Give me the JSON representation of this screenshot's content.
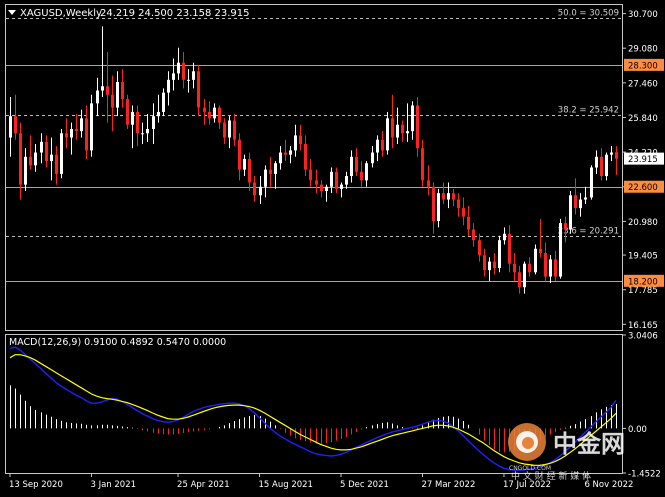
{
  "symbol_header": {
    "symbol": "XAGUSD,Weekly",
    "ohlc": "24.219 24.500 23.158 23.915"
  },
  "price_axis": {
    "ticks": [
      "30.700",
      "29.080",
      "27.460",
      "25.840",
      "24.220",
      "22.600",
      "20.980",
      "19.405",
      "17.785",
      "16.165"
    ],
    "current_price": "23.915",
    "tagged_levels": [
      {
        "label": "28.300",
        "value": 28.3
      },
      {
        "label": "22.600",
        "value": 22.6
      },
      {
        "label": "18.200",
        "value": 18.2
      }
    ]
  },
  "fibonacci_levels": [
    {
      "label": "50.0 = 30.509",
      "value": 30.509
    },
    {
      "label": "38.2 = 25.942",
      "value": 25.942
    },
    {
      "label": "23.6 = 20.291",
      "value": 20.291
    }
  ],
  "macd_panel": {
    "label": "MACD(12,26,9) 0.9100 0.4892 0.5470 0.0000",
    "axis_ticks": [
      "3.0406",
      "0.00",
      "-1.4522"
    ]
  },
  "time_axis": {
    "labels": [
      "13 Sep 2020",
      "3 Jan 2021",
      "25 Apr 2021",
      "15 Aug 2021",
      "5 Dec 2021",
      "27 Mar 2022",
      "17 Jul 2022",
      "6 Nov 2022"
    ]
  },
  "watermark": {
    "brand": "中金网",
    "domain": "CNGOLD.COM",
    "slogan": "中 文 财 经 新 媒 体"
  },
  "colors": {
    "background": "#000000",
    "bull_candle": "#ffffff",
    "bear_candle": "#ff2020",
    "level_line": "#ff8c3c",
    "macd_main": "#1f1fff",
    "macd_signal": "#ffff00"
  },
  "chart_data": {
    "type": "candlestick",
    "symbol": "XAGUSD",
    "timeframe": "Weekly",
    "last_bar": {
      "open": 24.219,
      "high": 24.5,
      "low": 23.158,
      "close": 23.915
    },
    "y_range": [
      15.9,
      31.1
    ],
    "candles": [
      [
        24.9,
        26.8,
        24.0,
        25.9
      ],
      [
        25.9,
        26.9,
        24.8,
        25.1
      ],
      [
        25.1,
        25.6,
        22.0,
        22.7
      ],
      [
        22.7,
        24.4,
        22.4,
        24.0
      ],
      [
        24.0,
        25.0,
        23.4,
        23.6
      ],
      [
        23.6,
        24.6,
        23.3,
        24.2
      ],
      [
        24.2,
        25.1,
        23.7,
        24.7
      ],
      [
        24.7,
        25.0,
        23.5,
        23.8
      ],
      [
        23.8,
        24.9,
        22.9,
        24.1
      ],
      [
        24.1,
        24.5,
        22.7,
        23.2
      ],
      [
        23.2,
        25.3,
        23.0,
        25.1
      ],
      [
        25.1,
        25.8,
        24.4,
        24.9
      ],
      [
        24.9,
        25.6,
        24.1,
        25.3
      ],
      [
        25.3,
        26.0,
        24.8,
        25.2
      ],
      [
        25.2,
        26.2,
        24.9,
        25.8
      ],
      [
        25.8,
        26.4,
        23.9,
        24.3
      ],
      [
        24.3,
        26.9,
        24.0,
        26.5
      ],
      [
        26.5,
        27.7,
        25.9,
        27.1
      ],
      [
        27.1,
        30.1,
        26.8,
        27.3
      ],
      [
        27.3,
        28.9,
        25.6,
        26.9
      ],
      [
        26.9,
        27.8,
        25.2,
        26.3
      ],
      [
        26.3,
        28.0,
        25.9,
        27.5
      ],
      [
        27.5,
        28.1,
        26.3,
        26.7
      ],
      [
        26.7,
        26.9,
        25.3,
        25.5
      ],
      [
        25.5,
        26.4,
        24.4,
        26.1
      ],
      [
        26.1,
        26.4,
        24.5,
        25.1
      ],
      [
        25.1,
        25.6,
        24.6,
        25.1
      ],
      [
        25.1,
        26.0,
        24.7,
        25.3
      ],
      [
        25.3,
        26.5,
        24.6,
        25.9
      ],
      [
        25.9,
        26.9,
        25.6,
        26.1
      ],
      [
        26.1,
        27.2,
        25.9,
        27.0
      ],
      [
        27.0,
        28.0,
        26.4,
        27.6
      ],
      [
        27.6,
        28.6,
        27.1,
        27.9
      ],
      [
        27.9,
        29.1,
        27.6,
        28.4
      ],
      [
        28.4,
        28.9,
        27.2,
        27.6
      ],
      [
        27.6,
        28.1,
        27.0,
        27.6
      ],
      [
        27.6,
        28.4,
        27.2,
        28.0
      ],
      [
        28.0,
        28.3,
        25.9,
        26.3
      ],
      [
        26.3,
        26.7,
        25.5,
        26.1
      ],
      [
        26.1,
        26.6,
        25.5,
        25.8
      ],
      [
        25.8,
        26.5,
        25.6,
        26.3
      ],
      [
        26.3,
        26.4,
        25.3,
        25.6
      ],
      [
        25.6,
        25.8,
        24.6,
        24.9
      ],
      [
        24.9,
        25.9,
        24.4,
        25.7
      ],
      [
        25.7,
        26.0,
        24.5,
        24.8
      ],
      [
        24.8,
        25.1,
        22.9,
        23.4
      ],
      [
        23.4,
        24.1,
        23.1,
        23.9
      ],
      [
        23.9,
        24.2,
        22.4,
        22.8
      ],
      [
        22.8,
        23.1,
        21.9,
        22.2
      ],
      [
        22.2,
        23.1,
        21.8,
        22.6
      ],
      [
        22.6,
        23.6,
        22.1,
        23.4
      ],
      [
        23.4,
        24.0,
        22.6,
        23.2
      ],
      [
        23.2,
        23.8,
        22.5,
        23.7
      ],
      [
        23.7,
        24.5,
        23.4,
        24.2
      ],
      [
        24.2,
        24.8,
        23.8,
        24.1
      ],
      [
        24.1,
        24.5,
        23.7,
        24.3
      ],
      [
        24.3,
        25.5,
        24.0,
        25.0
      ],
      [
        25.0,
        25.5,
        24.3,
        24.6
      ],
      [
        24.6,
        25.0,
        23.1,
        23.4
      ],
      [
        23.4,
        23.9,
        22.6,
        22.9
      ],
      [
        22.9,
        23.4,
        22.3,
        22.7
      ],
      [
        22.7,
        22.9,
        22.1,
        22.4
      ],
      [
        22.4,
        22.7,
        21.9,
        22.6
      ],
      [
        22.6,
        23.5,
        22.3,
        23.3
      ],
      [
        23.3,
        23.5,
        22.3,
        22.5
      ],
      [
        22.5,
        22.8,
        22.1,
        22.7
      ],
      [
        22.7,
        23.3,
        22.5,
        23.1
      ],
      [
        23.1,
        24.3,
        22.8,
        24.0
      ],
      [
        24.0,
        24.4,
        23.1,
        23.3
      ],
      [
        23.3,
        23.8,
        22.6,
        22.9
      ],
      [
        22.9,
        23.8,
        22.6,
        23.7
      ],
      [
        23.7,
        24.5,
        23.5,
        24.2
      ],
      [
        24.2,
        25.0,
        23.8,
        24.8
      ],
      [
        24.8,
        25.2,
        24.0,
        24.3
      ],
      [
        24.3,
        26.1,
        24.1,
        25.8
      ],
      [
        25.8,
        26.9,
        24.4,
        24.9
      ],
      [
        24.9,
        26.3,
        24.6,
        25.5
      ],
      [
        25.5,
        25.7,
        24.7,
        25.1
      ],
      [
        25.1,
        26.5,
        24.7,
        25.2
      ],
      [
        25.2,
        26.6,
        24.8,
        26.4
      ],
      [
        26.4,
        26.8,
        24.0,
        24.4
      ],
      [
        24.4,
        24.8,
        22.6,
        22.9
      ],
      [
        22.9,
        23.6,
        22.2,
        22.6
      ],
      [
        22.6,
        22.8,
        20.4,
        21.0
      ],
      [
        21.0,
        22.5,
        20.7,
        22.3
      ],
      [
        22.3,
        22.8,
        21.8,
        22.0
      ],
      [
        22.0,
        22.8,
        21.6,
        22.3
      ],
      [
        22.3,
        22.5,
        21.7,
        22.0
      ],
      [
        22.0,
        22.3,
        21.2,
        21.6
      ],
      [
        21.6,
        22.1,
        20.8,
        21.2
      ],
      [
        21.2,
        21.7,
        20.3,
        20.6
      ],
      [
        20.6,
        20.9,
        19.8,
        20.1
      ],
      [
        20.1,
        20.4,
        19.1,
        19.4
      ],
      [
        19.4,
        19.7,
        18.4,
        18.7
      ],
      [
        18.7,
        19.3,
        18.2,
        19.1
      ],
      [
        19.1,
        19.5,
        18.5,
        18.8
      ],
      [
        18.8,
        20.3,
        18.6,
        20.1
      ],
      [
        20.1,
        20.7,
        19.9,
        20.4
      ],
      [
        20.4,
        20.8,
        18.6,
        19.0
      ],
      [
        19.0,
        19.5,
        18.2,
        18.6
      ],
      [
        18.6,
        18.9,
        17.6,
        17.9
      ],
      [
        17.9,
        19.1,
        17.6,
        19.0
      ],
      [
        19.0,
        19.3,
        18.4,
        18.6
      ],
      [
        18.6,
        19.9,
        18.5,
        19.7
      ],
      [
        19.7,
        21.1,
        19.3,
        19.5
      ],
      [
        19.5,
        20.0,
        18.2,
        18.4
      ],
      [
        18.4,
        19.4,
        18.1,
        19.2
      ],
      [
        19.2,
        19.6,
        18.2,
        18.4
      ],
      [
        18.4,
        21.1,
        18.3,
        20.9
      ],
      [
        20.9,
        21.2,
        20.0,
        20.6
      ],
      [
        20.6,
        22.4,
        20.4,
        22.2
      ],
      [
        22.2,
        23.0,
        21.3,
        21.6
      ],
      [
        21.6,
        22.3,
        21.2,
        22.0
      ],
      [
        22.0,
        22.6,
        21.8,
        22.1
      ],
      [
        22.1,
        23.6,
        22.0,
        23.5
      ],
      [
        23.5,
        24.3,
        23.2,
        24.0
      ],
      [
        24.0,
        24.4,
        22.9,
        23.1
      ],
      [
        23.1,
        24.2,
        22.9,
        24.1
      ],
      [
        24.1,
        24.5,
        23.8,
        24.2
      ],
      [
        24.219,
        24.5,
        23.158,
        23.915
      ]
    ],
    "macd_histogram": [
      1.4,
      1.3,
      1.1,
      0.9,
      0.72,
      0.6,
      0.52,
      0.45,
      0.38,
      0.3,
      0.25,
      0.2,
      0.18,
      0.16,
      0.15,
      0.12,
      0.1,
      0.1,
      0.12,
      0.12,
      0.1,
      0.08,
      0.06,
      0.04,
      0.02,
      -0.02,
      -0.06,
      -0.1,
      -0.14,
      -0.17,
      -0.19,
      -0.2,
      -0.2,
      -0.18,
      -0.15,
      -0.12,
      -0.1,
      -0.08,
      -0.06,
      -0.03,
      0.0,
      0.05,
      0.1,
      0.17,
      0.24,
      0.3,
      0.36,
      0.4,
      0.44,
      0.4,
      0.32,
      0.22,
      0.1,
      -0.02,
      -0.14,
      -0.24,
      -0.32,
      -0.38,
      -0.42,
      -0.46,
      -0.5,
      -0.5,
      -0.48,
      -0.45,
      -0.4,
      -0.34,
      -0.28,
      -0.2,
      -0.12,
      -0.04,
      0.04,
      0.1,
      0.14,
      0.18,
      0.2,
      0.16,
      0.1,
      0.04,
      0.0,
      -0.02,
      0.02,
      0.1,
      0.2,
      0.28,
      0.34,
      0.38,
      0.4,
      0.38,
      0.32,
      0.24,
      0.12,
      0.0,
      -0.2,
      -0.4,
      -0.55,
      -0.68,
      -0.76,
      -0.78,
      -0.76,
      -0.72,
      -0.68,
      -0.62,
      -0.56,
      -0.5,
      -0.4,
      -0.3,
      -0.2,
      -0.12,
      -0.05,
      0.02,
      0.08,
      0.14,
      0.22,
      0.3,
      0.4,
      0.52,
      0.62,
      0.7,
      0.76,
      0.8
    ],
    "macd_line": [
      2.6,
      2.65,
      2.55,
      2.4,
      2.25,
      2.1,
      1.95,
      1.8,
      1.65,
      1.5,
      1.38,
      1.28,
      1.18,
      1.08,
      1.0,
      0.9,
      0.82,
      0.82,
      0.86,
      0.92,
      0.98,
      0.96,
      0.88,
      0.78,
      0.68,
      0.58,
      0.48,
      0.4,
      0.32,
      0.26,
      0.22,
      0.2,
      0.22,
      0.28,
      0.36,
      0.46,
      0.55,
      0.62,
      0.68,
      0.72,
      0.75,
      0.78,
      0.8,
      0.82,
      0.82,
      0.8,
      0.74,
      0.64,
      0.5,
      0.34,
      0.18,
      0.02,
      -0.12,
      -0.24,
      -0.34,
      -0.44,
      -0.52,
      -0.6,
      -0.68,
      -0.76,
      -0.82,
      -0.86,
      -0.88,
      -0.9,
      -0.88,
      -0.84,
      -0.78,
      -0.7,
      -0.62,
      -0.54,
      -0.46,
      -0.38,
      -0.3,
      -0.24,
      -0.18,
      -0.12,
      -0.08,
      -0.04,
      0.0,
      0.04,
      0.08,
      0.14,
      0.2,
      0.24,
      0.26,
      0.24,
      0.18,
      0.06,
      -0.08,
      -0.24,
      -0.4,
      -0.56,
      -0.72,
      -0.86,
      -1.0,
      -1.12,
      -1.22,
      -1.3,
      -1.34,
      -1.36,
      -1.36,
      -1.35,
      -1.33,
      -1.3,
      -1.26,
      -1.2,
      -1.12,
      -1.02,
      -0.9,
      -0.76,
      -0.6,
      -0.44,
      -0.28,
      -0.12,
      0.04,
      0.2,
      0.36,
      0.52,
      0.68,
      0.91
    ],
    "macd_signal": [
      2.3,
      2.4,
      2.4,
      2.36,
      2.3,
      2.22,
      2.12,
      2.02,
      1.92,
      1.82,
      1.72,
      1.62,
      1.52,
      1.42,
      1.32,
      1.22,
      1.12,
      1.05,
      1.0,
      0.97,
      0.95,
      0.92,
      0.88,
      0.84,
      0.78,
      0.72,
      0.65,
      0.58,
      0.5,
      0.43,
      0.37,
      0.32,
      0.3,
      0.3,
      0.33,
      0.37,
      0.43,
      0.49,
      0.55,
      0.61,
      0.66,
      0.7,
      0.73,
      0.75,
      0.76,
      0.76,
      0.74,
      0.71,
      0.66,
      0.59,
      0.5,
      0.4,
      0.3,
      0.2,
      0.1,
      0.0,
      -0.1,
      -0.2,
      -0.28,
      -0.36,
      -0.44,
      -0.52,
      -0.58,
      -0.64,
      -0.68,
      -0.7,
      -0.7,
      -0.68,
      -0.64,
      -0.6,
      -0.54,
      -0.48,
      -0.42,
      -0.36,
      -0.3,
      -0.24,
      -0.2,
      -0.16,
      -0.12,
      -0.08,
      -0.04,
      0.0,
      0.04,
      0.08,
      0.1,
      0.1,
      0.08,
      0.04,
      -0.02,
      -0.1,
      -0.18,
      -0.28,
      -0.38,
      -0.48,
      -0.6,
      -0.72,
      -0.82,
      -0.92,
      -1.0,
      -1.06,
      -1.12,
      -1.16,
      -1.18,
      -1.2,
      -1.2,
      -1.18,
      -1.14,
      -1.08,
      -1.0,
      -0.9,
      -0.78,
      -0.66,
      -0.52,
      -0.38,
      -0.24,
      -0.1,
      0.04,
      0.18,
      0.32,
      0.49
    ],
    "macd_range": [
      -1.4522,
      3.0406
    ]
  }
}
